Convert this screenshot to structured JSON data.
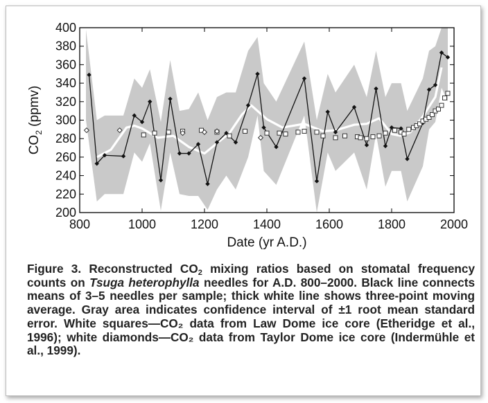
{
  "figure": {
    "caption_label": "Figure 3.",
    "caption_pre": " Reconstructed CO",
    "caption_sub": "2",
    "caption_mid": " mixing ratios based on stomatal frequency counts on ",
    "caption_species": "Tsuga heterophylla",
    "caption_post": " needles for A.D. 800–2000. Black line connects means of 3–5 needles per sample; thick white line shows three-point moving average. Gray area indicates confidence interval of ±1 root mean standard error. White squares—CO₂ data from Law Dome ice core (Etheridge et al., 1996); white diamonds—CO₂ data from Taylor Dome ice core (Indermühle et al., 1999)."
  },
  "chart_data": {
    "type": "line",
    "xlabel": "Date (yr A.D.)",
    "ylabel_pre": "CO",
    "ylabel_sub": "2",
    "ylabel_post": " (ppmv)",
    "xlim": [
      800,
      2000
    ],
    "ylim": [
      200,
      400
    ],
    "xticks": [
      800,
      1000,
      1200,
      1400,
      1600,
      1800,
      2000
    ],
    "yticks": [
      200,
      220,
      240,
      260,
      280,
      300,
      320,
      340,
      360,
      380,
      400
    ],
    "grid": false,
    "stomatal_means": {
      "x": [
        830,
        855,
        880,
        940,
        975,
        1000,
        1025,
        1060,
        1090,
        1120,
        1150,
        1180,
        1210,
        1240,
        1270,
        1300,
        1340,
        1370,
        1390,
        1430,
        1520,
        1560,
        1595,
        1620,
        1680,
        1720,
        1750,
        1780,
        1800,
        1830,
        1850,
        1900,
        1920,
        1940,
        1960,
        1980
      ],
      "y": [
        349,
        253,
        262,
        261,
        305,
        298,
        320,
        235,
        323,
        264,
        264,
        274,
        231,
        276,
        286,
        276,
        316,
        350,
        292,
        271,
        345,
        234,
        309,
        287,
        314,
        273,
        334,
        272,
        292,
        291,
        258,
        297,
        333,
        338,
        373,
        368
      ]
    },
    "moving_average": {
      "x": [
        855,
        900,
        950,
        975,
        1000,
        1050,
        1100,
        1150,
        1200,
        1240,
        1280,
        1320,
        1350,
        1400,
        1450,
        1520,
        1580,
        1620,
        1680,
        1720,
        1760,
        1800,
        1830,
        1860,
        1900,
        1940,
        1960
      ],
      "y": [
        260,
        268,
        292,
        294,
        291,
        281,
        283,
        271,
        264,
        275,
        286,
        306,
        316,
        301,
        292,
        296,
        288,
        289,
        295,
        296,
        302,
        285,
        283,
        287,
        304,
        325,
        357
      ]
    },
    "confidence_band": {
      "x": [
        820,
        855,
        880,
        940,
        975,
        1000,
        1025,
        1060,
        1090,
        1120,
        1150,
        1180,
        1210,
        1240,
        1270,
        1300,
        1340,
        1370,
        1390,
        1430,
        1520,
        1560,
        1595,
        1620,
        1680,
        1720,
        1750,
        1780,
        1800,
        1830,
        1850,
        1900,
        1920,
        1940,
        1960,
        1980
      ],
      "upper": [
        398,
        300,
        305,
        305,
        345,
        335,
        355,
        298,
        365,
        310,
        312,
        330,
        300,
        325,
        330,
        330,
        375,
        390,
        340,
        320,
        385,
        300,
        350,
        330,
        360,
        325,
        375,
        325,
        340,
        340,
        310,
        345,
        375,
        380,
        400,
        400
      ],
      "lower": [
        300,
        212,
        220,
        220,
        265,
        255,
        275,
        202,
        265,
        220,
        218,
        218,
        203,
        225,
        240,
        225,
        260,
        305,
        245,
        230,
        305,
        200,
        265,
        245,
        265,
        225,
        285,
        228,
        245,
        245,
        212,
        250,
        290,
        298,
        335,
        320
      ]
    },
    "law_dome_squares": {
      "x": [
        1005,
        1040,
        1085,
        1130,
        1190,
        1240,
        1280,
        1330,
        1400,
        1440,
        1460,
        1500,
        1520,
        1560,
        1580,
        1620,
        1650,
        1690,
        1700,
        1720,
        1740,
        1760,
        1780,
        1810,
        1830,
        1840,
        1855,
        1870,
        1880,
        1890,
        1900,
        1910,
        1920,
        1930,
        1940,
        1950,
        1960,
        1970,
        1980
      ],
      "y": [
        284,
        286,
        287,
        288,
        289,
        287,
        283,
        288,
        286,
        286,
        285,
        287,
        288,
        287,
        283,
        281,
        283,
        282,
        281,
        280,
        282,
        283,
        286,
        289,
        287,
        285,
        290,
        292,
        294,
        296,
        299,
        301,
        303,
        306,
        310,
        312,
        316,
        324,
        329
      ]
    },
    "taylor_dome_diamonds": {
      "x": [
        822,
        928,
        1130,
        1200,
        1240,
        1380
      ],
      "y": [
        289,
        289,
        286,
        287,
        288,
        281
      ]
    },
    "colors": {
      "band": "#c9c9c9",
      "means_line": "#111111",
      "moving_average": "#ffffff",
      "markers_fill": "#ffffff",
      "markers_stroke": "#333333"
    }
  }
}
